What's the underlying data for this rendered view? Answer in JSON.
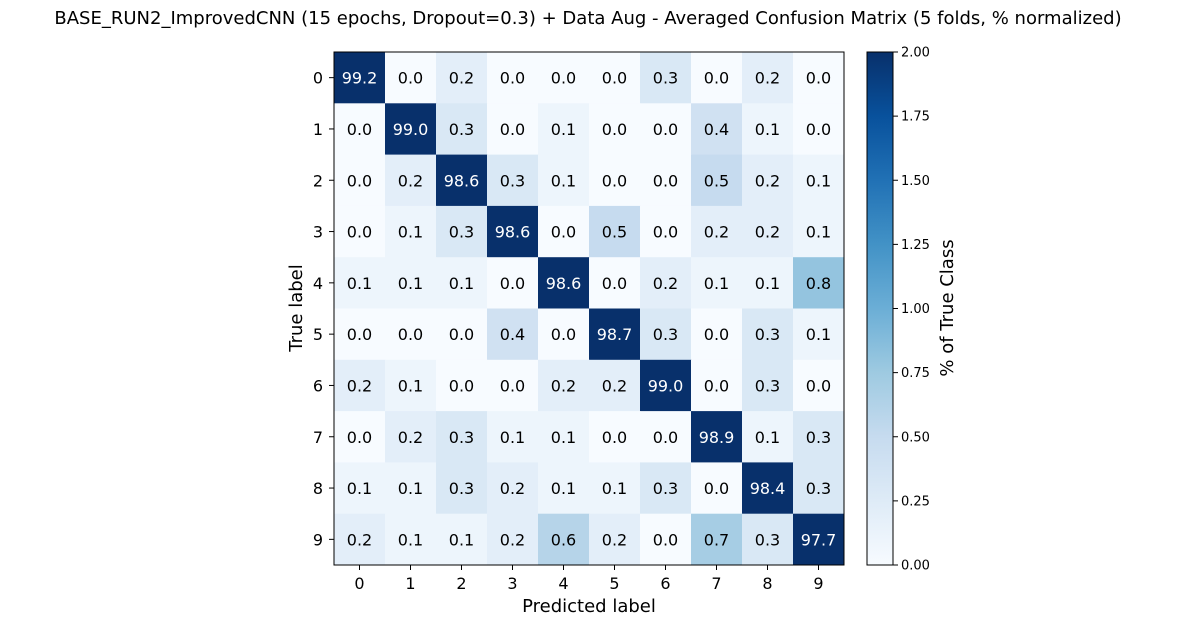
{
  "chart_data": {
    "type": "heatmap",
    "title": "BASE_RUN2_ImprovedCNN (15 epochs, Dropout=0.3) + Data Aug - Averaged Confusion Matrix (5 folds, % normalized)",
    "xlabel": "Predicted label",
    "ylabel": "True label",
    "x_categories": [
      "0",
      "1",
      "2",
      "3",
      "4",
      "5",
      "6",
      "7",
      "8",
      "9"
    ],
    "y_categories": [
      "0",
      "1",
      "2",
      "3",
      "4",
      "5",
      "6",
      "7",
      "8",
      "9"
    ],
    "values": [
      [
        99.2,
        0.0,
        0.2,
        0.0,
        0.0,
        0.0,
        0.3,
        0.0,
        0.2,
        0.0
      ],
      [
        0.0,
        99.0,
        0.3,
        0.0,
        0.1,
        0.0,
        0.0,
        0.4,
        0.1,
        0.0
      ],
      [
        0.0,
        0.2,
        98.6,
        0.3,
        0.1,
        0.0,
        0.0,
        0.5,
        0.2,
        0.1
      ],
      [
        0.0,
        0.1,
        0.3,
        98.6,
        0.0,
        0.5,
        0.0,
        0.2,
        0.2,
        0.1
      ],
      [
        0.1,
        0.1,
        0.1,
        0.0,
        98.6,
        0.0,
        0.2,
        0.1,
        0.1,
        0.8
      ],
      [
        0.0,
        0.0,
        0.0,
        0.4,
        0.0,
        98.7,
        0.3,
        0.0,
        0.3,
        0.1
      ],
      [
        0.2,
        0.1,
        0.0,
        0.0,
        0.2,
        0.2,
        99.0,
        0.0,
        0.3,
        0.0
      ],
      [
        0.0,
        0.2,
        0.3,
        0.1,
        0.1,
        0.0,
        0.0,
        98.9,
        0.1,
        0.3
      ],
      [
        0.1,
        0.1,
        0.3,
        0.2,
        0.1,
        0.1,
        0.3,
        0.0,
        98.4,
        0.3
      ],
      [
        0.2,
        0.1,
        0.1,
        0.2,
        0.6,
        0.2,
        0.0,
        0.7,
        0.3,
        97.7
      ]
    ],
    "colorscale": "Blues",
    "colorbar": {
      "label": "% of True Class",
      "min": 0.0,
      "max": 2.0,
      "ticks": [
        "0.00",
        "0.25",
        "0.50",
        "0.75",
        "1.00",
        "1.25",
        "1.50",
        "1.75",
        "2.00"
      ]
    },
    "grid": false
  }
}
